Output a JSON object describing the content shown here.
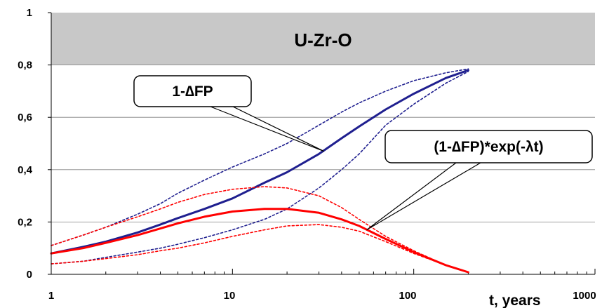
{
  "chart_data": {
    "type": "line",
    "xscale": "log",
    "xlim": [
      1,
      1000
    ],
    "ylim": [
      0,
      1
    ],
    "xlabel": "t, years",
    "ylabel": "",
    "title": "",
    "x_ticks": [
      "1",
      "10",
      "100",
      "1000"
    ],
    "y_ticks": [
      "0",
      "0,2",
      "0,4",
      "0,6",
      "0,8",
      "1"
    ],
    "grid": "horizontal",
    "band": {
      "label": "U-Zr-O",
      "from": 0.8,
      "to": 1.0,
      "color": "#c8c8c8"
    },
    "x": [
      1,
      1.5,
      2,
      3,
      4,
      5,
      7,
      10,
      15,
      20,
      30,
      40,
      50,
      70,
      100,
      150,
      200
    ],
    "series": [
      {
        "id": "fp-mean",
        "color": "#1f1f8f",
        "style": "solid",
        "values": [
          0.08,
          0.105,
          0.125,
          0.16,
          0.19,
          0.215,
          0.25,
          0.29,
          0.35,
          0.39,
          0.46,
          0.52,
          0.565,
          0.63,
          0.69,
          0.75,
          0.78
        ]
      },
      {
        "id": "fp-upper",
        "color": "#1f1f8f",
        "style": "dotted",
        "values": [
          0.11,
          0.15,
          0.18,
          0.23,
          0.27,
          0.31,
          0.36,
          0.41,
          0.46,
          0.5,
          0.57,
          0.62,
          0.655,
          0.7,
          0.74,
          0.77,
          0.785
        ]
      },
      {
        "id": "fp-lower",
        "color": "#1f1f8f",
        "style": "dotted",
        "values": [
          0.04,
          0.05,
          0.065,
          0.085,
          0.1,
          0.115,
          0.14,
          0.17,
          0.21,
          0.25,
          0.33,
          0.4,
          0.46,
          0.57,
          0.65,
          0.73,
          0.775
        ]
      },
      {
        "id": "fpexp-mean",
        "color": "#ff0000",
        "style": "solid",
        "values": [
          0.08,
          0.1,
          0.12,
          0.15,
          0.175,
          0.195,
          0.22,
          0.24,
          0.25,
          0.25,
          0.235,
          0.21,
          0.185,
          0.135,
          0.085,
          0.035,
          0.008
        ]
      },
      {
        "id": "fpexp-upper",
        "color": "#ff0000",
        "style": "dotted",
        "values": [
          0.11,
          0.15,
          0.18,
          0.22,
          0.25,
          0.275,
          0.305,
          0.325,
          0.335,
          0.33,
          0.3,
          0.255,
          0.21,
          0.145,
          0.09,
          0.035,
          0.008
        ]
      },
      {
        "id": "fpexp-lower",
        "color": "#ff0000",
        "style": "dotted",
        "values": [
          0.04,
          0.05,
          0.06,
          0.075,
          0.09,
          0.1,
          0.12,
          0.145,
          0.17,
          0.185,
          0.19,
          0.18,
          0.165,
          0.125,
          0.08,
          0.035,
          0.008
        ]
      }
    ],
    "annotations": [
      {
        "id": "fp",
        "text": "1-∆FP",
        "points_to": [
          32,
          0.47
        ]
      },
      {
        "id": "fpexp",
        "text": "(1-∆FP)*exp(-λt)",
        "points_to": [
          55,
          0.17
        ]
      }
    ]
  }
}
